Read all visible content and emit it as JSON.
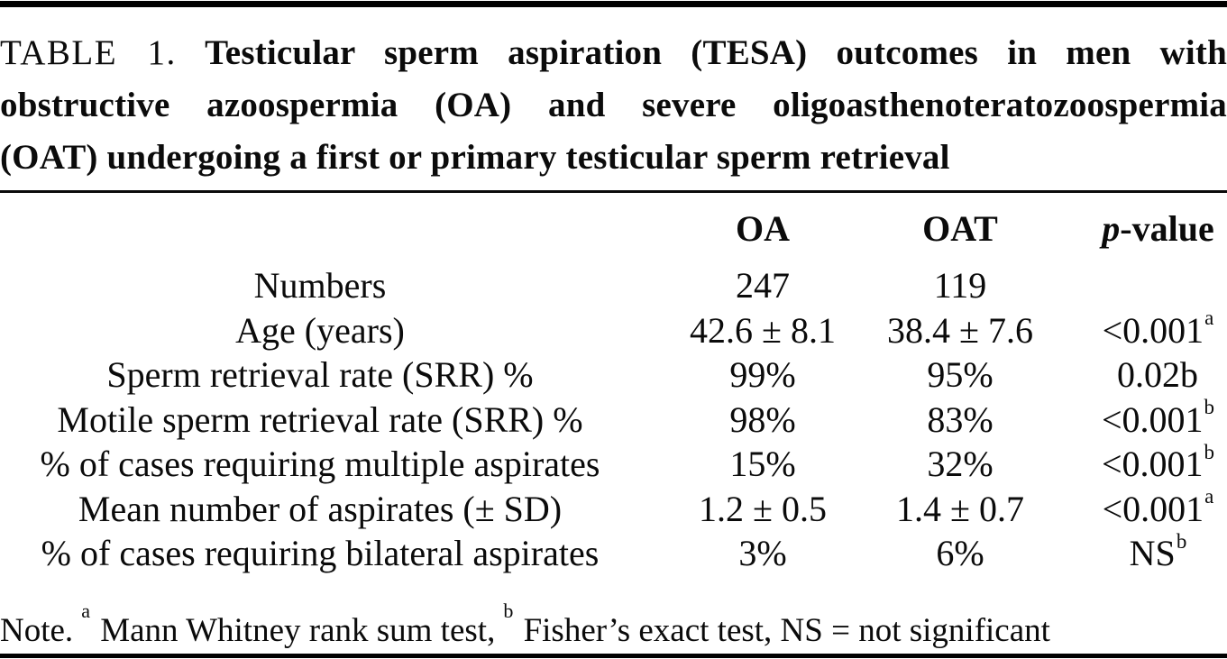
{
  "title": {
    "label": "TABLE 1.",
    "line1_rest": "Testicular sperm aspiration (TESA) outcomes in men with",
    "line2": "obstructive azoospermia (OA) and severe oligoasthenoteratozoospermia",
    "line3": "(OAT) undergoing a first or primary testicular sperm retrieval"
  },
  "table": {
    "columns": {
      "label": "",
      "oa": "OA",
      "oat": "OAT",
      "p_italic": "p",
      "p_rest": "-value"
    },
    "rows": [
      {
        "label": "Numbers",
        "oa": "247",
        "oat": "119",
        "p": "",
        "p_sup": ""
      },
      {
        "label": "Age (years)",
        "oa": "42.6 ± 8.1",
        "oat": "38.4 ± 7.6",
        "p": "<0.001",
        "p_sup": "a"
      },
      {
        "label": "Sperm retrieval rate (SRR) %",
        "oa": "99%",
        "oat": "95%",
        "p": "0.02b",
        "p_sup": ""
      },
      {
        "label": "Motile sperm retrieval rate (SRR) %",
        "oa": "98%",
        "oat": "83%",
        "p": "<0.001",
        "p_sup": "b"
      },
      {
        "label": "% of cases requiring multiple aspirates",
        "oa": "15%",
        "oat": "32%",
        "p": "<0.001",
        "p_sup": "b"
      },
      {
        "label": "Mean number of aspirates (± SD)",
        "oa": "1.2 ± 0.5",
        "oat": "1.4 ± 0.7",
        "p": "<0.001",
        "p_sup": "a"
      },
      {
        "label": "% of cases requiring bilateral aspirates",
        "oa": "3%",
        "oat": "6%",
        "p": "NS",
        "p_sup": "b"
      }
    ]
  },
  "note": {
    "prefix": "Note.",
    "sup_a": "a",
    "text_a": " Mann Whitney rank sum test,",
    "sup_b": "b",
    "text_b": " Fisher’s exact test, NS = not significant"
  },
  "colors": {
    "text": "#0b0b0b",
    "rule": "#000000",
    "background": "#ffffff"
  }
}
